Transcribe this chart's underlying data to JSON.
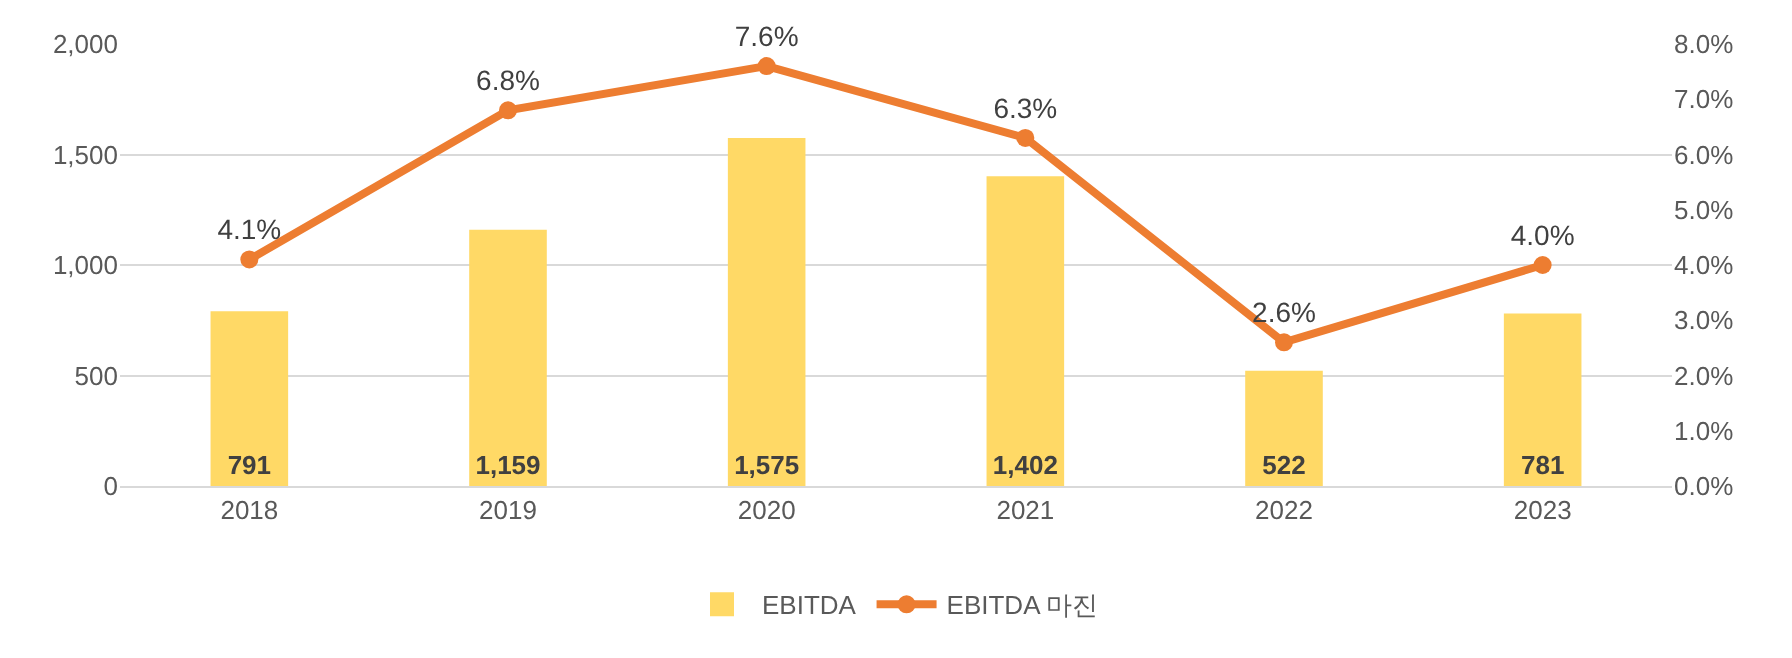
{
  "chart_data": {
    "type": "bar",
    "categories": [
      "2018",
      "2019",
      "2020",
      "2021",
      "2022",
      "2023"
    ],
    "series": [
      {
        "name": "EBITDA",
        "color": "#ffd966",
        "values": [
          791,
          1159,
          1575,
          1402,
          522,
          781
        ],
        "value_labels": [
          "791",
          "1,159",
          "1,575",
          "1,402",
          "522",
          "781"
        ]
      },
      {
        "name": "EBITDA 마진",
        "type": "line",
        "axis": "y2",
        "color": "#ed7d31",
        "marker": "circle",
        "values": [
          4.1,
          6.8,
          7.6,
          6.3,
          2.6,
          4.0
        ],
        "value_labels": [
          "4.1%",
          "6.8%",
          "7.6%",
          "6.3%",
          "2.6%",
          "4.0%"
        ]
      }
    ],
    "ylim": [
      0,
      2000
    ],
    "yticks": [
      0,
      {
        "value": 500,
        "label": "500"
      },
      {
        "value": 1000,
        "label": "1,000"
      },
      {
        "value": 1500,
        "label": "1,500"
      },
      {
        "value": 2000,
        "label": "2,000"
      }
    ],
    "y2lim": [
      0,
      8
    ],
    "y2ticks": [
      {
        "value": 0,
        "label": "0.0%"
      },
      {
        "value": 1,
        "label": "1.0%"
      },
      {
        "value": 2,
        "label": "2.0%"
      },
      {
        "value": 3,
        "label": "3.0%"
      },
      {
        "value": 4,
        "label": "4.0%"
      },
      {
        "value": 5,
        "label": "5.0%"
      },
      {
        "value": 6,
        "label": "6.0%"
      },
      {
        "value": 7,
        "label": "7.0%"
      },
      {
        "value": 8,
        "label": "8.0%"
      }
    ],
    "grid": "y",
    "legend": "bottom"
  }
}
